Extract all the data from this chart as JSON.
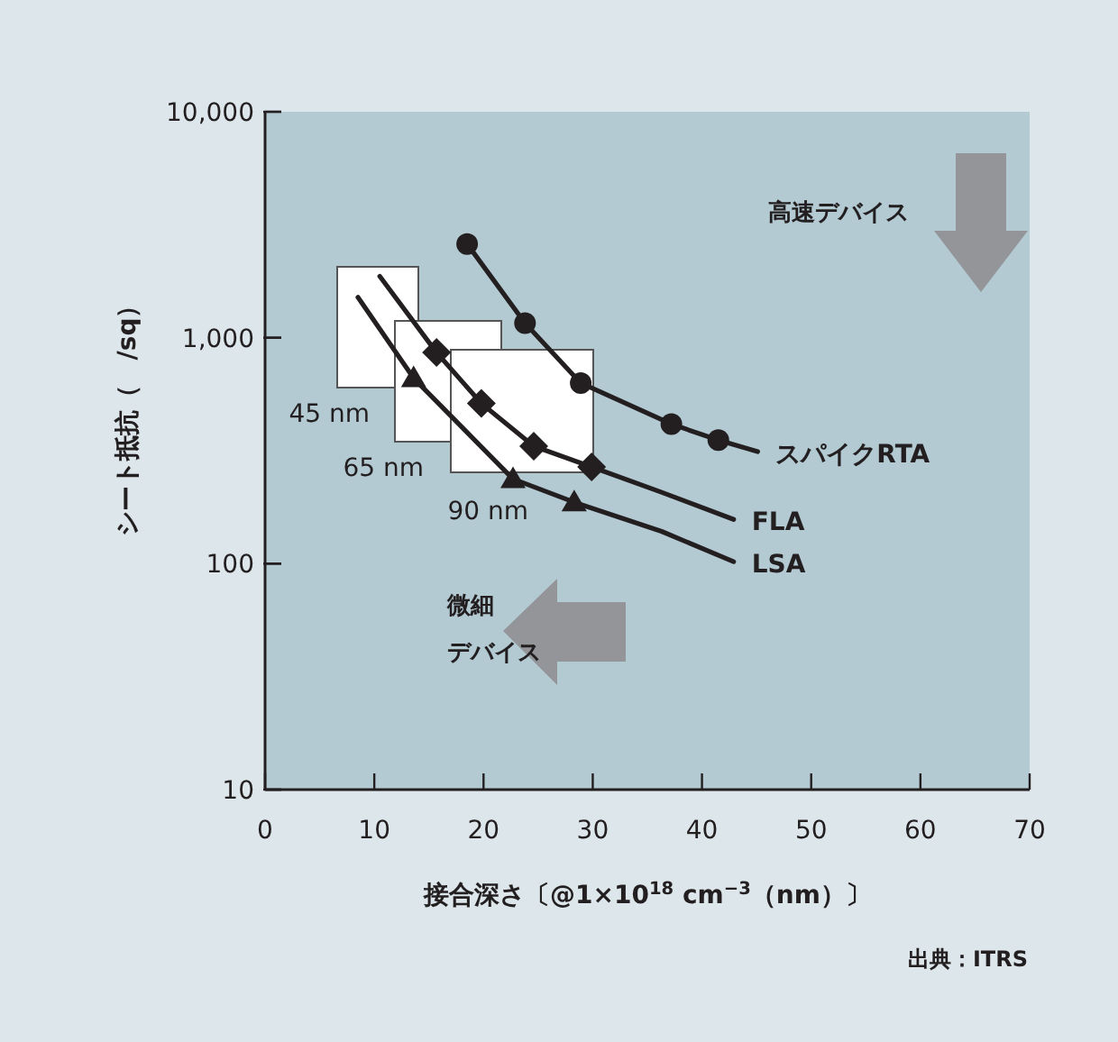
{
  "chart_data": {
    "type": "line",
    "xlabel": "接合深さ〔@1×10$^{18}$ cm$^{−3}$（nm）〕",
    "ylabel": "シート抵抗（　/sq）",
    "xlim": [
      0,
      70
    ],
    "ylim": [
      10,
      10000
    ],
    "xticks": [
      0,
      10,
      20,
      30,
      40,
      50,
      60,
      70
    ],
    "yticks": [
      {
        "value": 10,
        "label": "10"
      },
      {
        "value": 100,
        "label": "100"
      },
      {
        "value": 1000,
        "label": "1,000"
      },
      {
        "value": 10000,
        "label": "10,000"
      }
    ],
    "log": "y",
    "grid": false,
    "series": [
      {
        "name": "スパイクRTA",
        "color": "#231f20",
        "marker": "none",
        "x": [
          18.5,
          23.8,
          28.9,
          37.2,
          41.5,
          45.1
        ],
        "values": [
          2600,
          1160,
          630,
          415,
          352,
          313
        ]
      },
      {
        "type": "scatter",
        "color": "#231f20",
        "marker": "circle",
        "x": [
          18.5,
          23.8,
          28.9,
          37.2,
          41.5
        ],
        "values": [
          2600,
          1160,
          630,
          415,
          352
        ]
      },
      {
        "name": "FLA",
        "color": "#231f20",
        "marker": "none",
        "x": [
          10.5,
          15.7,
          19.8,
          24.6,
          29.9,
          36.3,
          42.9
        ],
        "values": [
          1870,
          860,
          512,
          331,
          268,
          207,
          157
        ]
      },
      {
        "type": "scatter",
        "color": "#231f20",
        "marker": "diamond",
        "x": [
          15.7,
          19.8,
          24.6,
          29.9
        ],
        "values": [
          860,
          512,
          331,
          268
        ]
      },
      {
        "name": "LSA",
        "color": "#231f20",
        "marker": "none",
        "x": [
          8.5,
          13.6,
          22.7,
          28.3,
          36.3,
          42.9
        ],
        "values": [
          1510,
          662,
          237,
          187,
          139,
          102
        ]
      },
      {
        "type": "scatter",
        "color": "#231f20",
        "marker": "triangle",
        "x": [
          13.6,
          22.7,
          28.3
        ],
        "values": [
          662,
          237,
          187
        ]
      }
    ],
    "annotations": [
      "45 nm",
      "65 nm",
      "90 nm",
      "高速デバイス",
      "微細",
      "デバイス",
      "出典：ITRS"
    ]
  }
}
